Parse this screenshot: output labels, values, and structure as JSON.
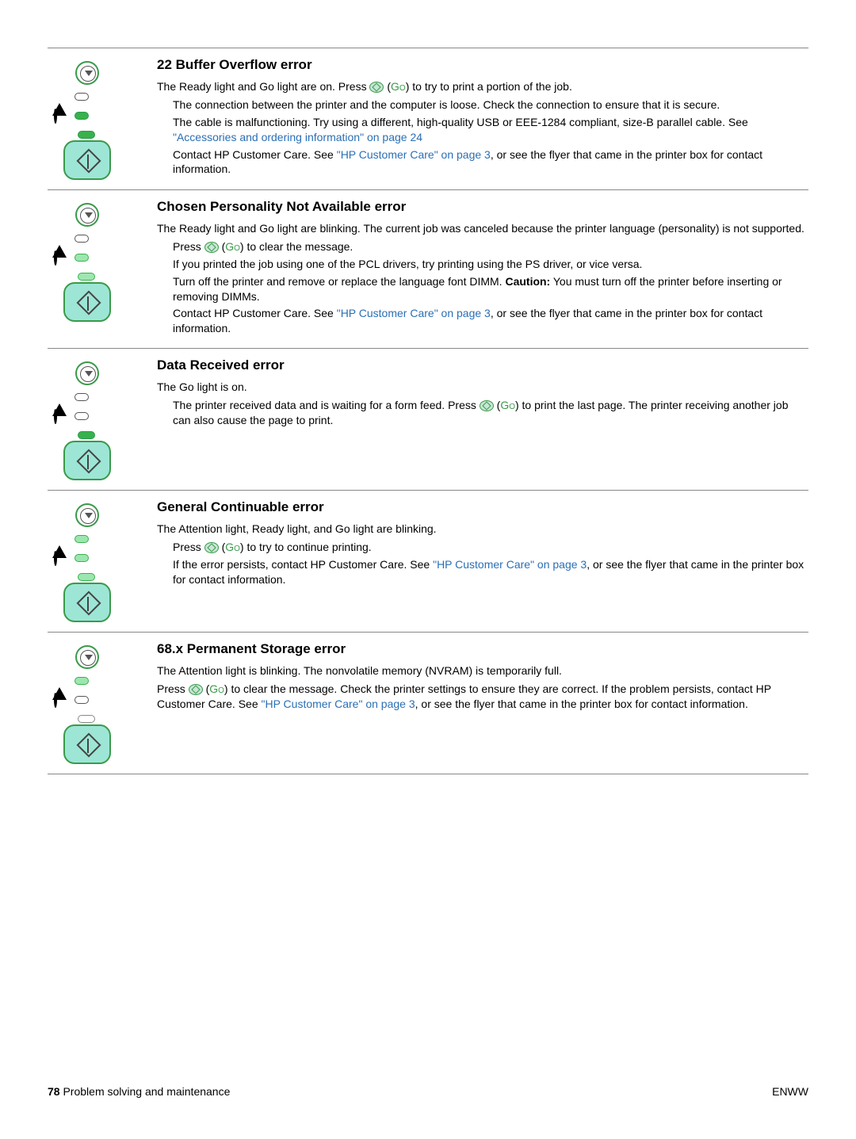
{
  "link_color": "#2a6fb5",
  "go_color": "#3a9a4a",
  "sections": [
    {
      "title": "22 Buffer Overflow error",
      "intro_pre": "The Ready light and Go light are on. Press ",
      "intro_go": true,
      "intro_post": ") to try to print a portion of the job.",
      "leds": {
        "attention": "off",
        "ready": "on",
        "go": "on"
      },
      "bullets": [
        [
          {
            "t": "The connection between the printer and the computer is loose. Check the connection to ensure that it is secure."
          }
        ],
        [
          {
            "t": "The cable is malfunctioning. Try using a different, high-quality USB or EEE-1284 compliant, size-B parallel cable. See "
          },
          {
            "t": "\"Accessories and ordering information\" on page 24",
            "link": true
          }
        ],
        [
          {
            "t": "Contact HP Customer Care. See "
          },
          {
            "t": "\"HP Customer Care\" on page 3",
            "link": true
          },
          {
            "t": ", or see the flyer that came in the printer box for contact information."
          }
        ]
      ]
    },
    {
      "title": "Chosen Personality Not Available error",
      "intro_pre": "The Ready light and Go light are blinking. The current job was canceled because the printer language (personality) is not supported.",
      "intro_go": false,
      "intro_post": "",
      "leds": {
        "attention": "off",
        "ready": "blink",
        "go": "blink"
      },
      "bullets": [
        [
          {
            "t": "Press "
          },
          {
            "go": true
          },
          {
            "t": ") to clear the message."
          }
        ],
        [
          {
            "t": "If you printed the job using one of the PCL drivers, try printing using the PS driver, or vice versa."
          }
        ],
        [
          {
            "t": "Turn off the printer and remove or replace the language font DIMM. "
          },
          {
            "t": "Caution:",
            "bold": true
          },
          {
            "t": " You must turn off the printer before inserting or removing DIMMs."
          }
        ],
        [
          {
            "t": "Contact HP Customer Care. See "
          },
          {
            "t": "\"HP Customer Care\" on page 3",
            "link": true
          },
          {
            "t": ", or see the flyer that came in the printer box for contact information."
          }
        ]
      ]
    },
    {
      "title": "Data Received error",
      "intro_pre": "The Go light is on.",
      "intro_go": false,
      "intro_post": "",
      "leds": {
        "attention": "off",
        "ready": "off",
        "go": "on"
      },
      "min_height": 176,
      "bullets": [
        [
          {
            "t": "The printer received data and is waiting for a form feed. Press "
          },
          {
            "go": true
          },
          {
            "t": ") to print the last page. The printer receiving another job can also cause the page to print."
          }
        ]
      ]
    },
    {
      "title": "General Continuable error",
      "intro_pre": "The Attention light, Ready light, and Go light are blinking.",
      "intro_go": false,
      "intro_post": "",
      "leds": {
        "attention": "blink",
        "ready": "blink",
        "go": "blink"
      },
      "min_height": 176,
      "bullets": [
        [
          {
            "t": "Press "
          },
          {
            "go": true
          },
          {
            "t": ") to try to continue printing."
          }
        ],
        [
          {
            "t": "If the error persists, contact HP Customer Care. See "
          },
          {
            "t": "\"HP Customer Care\" on page 3",
            "link": true
          },
          {
            "t": ", or see the flyer that came in the printer box for contact information."
          }
        ]
      ]
    },
    {
      "title": "68.x Permanent Storage error",
      "intro_pre": "The Attention light is blinking. The nonvolatile memory (NVRAM) is temporarily full.",
      "intro_go": false,
      "intro_post": "",
      "leds": {
        "attention": "blink",
        "ready": "off",
        "go": "off"
      },
      "min_height": 176,
      "single_para_pre": "Press ",
      "single_para_post": ") to clear the message. Check the printer settings to ensure they are correct. If the problem persists, contact HP Customer Care. See ",
      "single_para_link": "\"HP Customer Care\" on page 3",
      "single_para_tail": ", or see the flyer that came in the printer box for contact information."
    }
  ],
  "footer": {
    "page": "78",
    "chapter": "Problem solving and maintenance",
    "right": "ENWW"
  }
}
